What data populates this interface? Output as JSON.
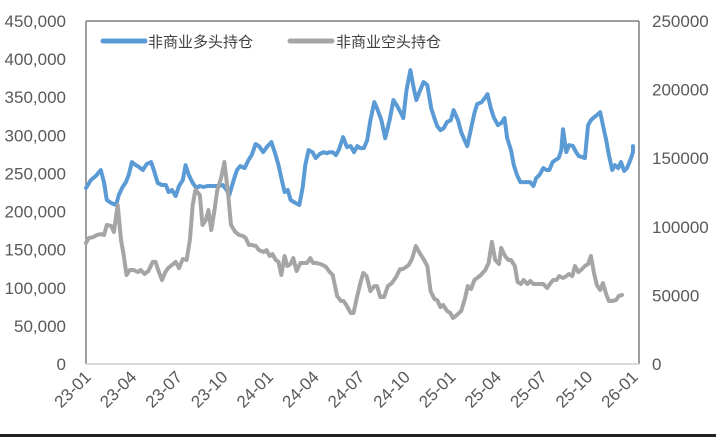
{
  "chart_data": {
    "type": "line",
    "title": "",
    "xlabel": "",
    "ylabel": "",
    "y2label": "",
    "x_tick_labels": [
      "23-01",
      "23-04",
      "23-07",
      "23-10",
      "24-01",
      "24-04",
      "24-07",
      "24-10",
      "25-01",
      "25-04",
      "25-07",
      "25-10",
      "26-01"
    ],
    "y_left": {
      "ticks": [
        0,
        50000,
        100000,
        150000,
        200000,
        250000,
        300000,
        350000,
        400000,
        450000
      ],
      "tick_labels": [
        "0",
        "50,000",
        "100,000",
        "150,000",
        "200,000",
        "250,000",
        "300,000",
        "350,000",
        "400,000",
        "450,000"
      ],
      "range": [
        0,
        450000
      ]
    },
    "y_right": {
      "ticks": [
        0,
        50000,
        100000,
        150000,
        200000,
        250000
      ],
      "tick_labels": [
        "0",
        "50000",
        "100000",
        "150000",
        "200000",
        "250000"
      ],
      "range": [
        0,
        250000
      ]
    },
    "legend_position": "top-left inside",
    "grid": false,
    "series": [
      {
        "name": "非商业多头持仓",
        "axis": "left",
        "color": "#5B9BD5",
        "x_frac": [
          0,
          0.009,
          0.018,
          0.027,
          0.033,
          0.038,
          0.046,
          0.055,
          0.06,
          0.066,
          0.073,
          0.078,
          0.084,
          0.091,
          0.097,
          0.104,
          0.111,
          0.119,
          0.124,
          0.131,
          0.139,
          0.146,
          0.151,
          0.157,
          0.164,
          0.17,
          0.177,
          0.182,
          0.188,
          0.195,
          0.202,
          0.208,
          0.215,
          0.222,
          0.23,
          0.237,
          0.242,
          0.25,
          0.257,
          0.262,
          0.27,
          0.276,
          0.282,
          0.29,
          0.297,
          0.303,
          0.31,
          0.316,
          0.324,
          0.332,
          0.339,
          0.345,
          0.352,
          0.358,
          0.363,
          0.369,
          0.374,
          0.383,
          0.39,
          0.396,
          0.401,
          0.407,
          0.414,
          0.42,
          0.427,
          0.434,
          0.44,
          0.445,
          0.451,
          0.457,
          0.462,
          0.47,
          0.477,
          0.484,
          0.49,
          0.496,
          0.501,
          0.508,
          0.514,
          0.52,
          0.527,
          0.532,
          0.54,
          0.547,
          0.555,
          0.562,
          0.569,
          0.575,
          0.58,
          0.586,
          0.593,
          0.599,
          0.604,
          0.611,
          0.617,
          0.624,
          0.631,
          0.637,
          0.642,
          0.648,
          0.654,
          0.66,
          0.667,
          0.672,
          0.68,
          0.686,
          0.692,
          0.697,
          0.704,
          0.71,
          0.715,
          0.723,
          0.729,
          0.734,
          0.74,
          0.746,
          0.753,
          0.759,
          0.765,
          0.77,
          0.777,
          0.782,
          0.788,
          0.794,
          0.801,
          0.807,
          0.812,
          0.818,
          0.823,
          0.829,
          0.836,
          0.842,
          0.847,
          0.853,
          0.858,
          0.864,
          0.869,
          0.872,
          0.878,
          0.883,
          0.89,
          0.896,
          0.901,
          0.907,
          0.912,
          0.918,
          0.923,
          0.929,
          0.934,
          0.94,
          0.945,
          0.951,
          0.956,
          0.962,
          0.967,
          0.973,
          0.978,
          0.984,
          0.989,
          0.995,
          1.0
        ],
        "values": [
          230900,
          241400,
          246600,
          254500,
          237500,
          215100,
          211200,
          208600,
          221700,
          230900,
          238700,
          247900,
          264900,
          261000,
          258300,
          254500,
          262300,
          264900,
          254500,
          237500,
          234800,
          234800,
          225700,
          228300,
          220400,
          233500,
          241400,
          261000,
          247900,
          237500,
          230900,
          233500,
          232200,
          233500,
          233500,
          233500,
          233500,
          234800,
          228300,
          221700,
          241400,
          254500,
          259600,
          257000,
          267500,
          274100,
          288500,
          285900,
          278000,
          285900,
          291100,
          278000,
          261000,
          241400,
          225700,
          228300,
          215100,
          211200,
          208600,
          230900,
          261000,
          280600,
          277900,
          270100,
          275400,
          277900,
          276600,
          277900,
          277900,
          274100,
          280600,
          297700,
          284600,
          285900,
          278000,
          285900,
          283200,
          283200,
          293700,
          319900,
          343500,
          335600,
          319900,
          296300,
          319900,
          346200,
          338300,
          330400,
          322600,
          359300,
          385500,
          361900,
          346200,
          359300,
          369800,
          365900,
          335600,
          322600,
          312100,
          306800,
          309400,
          317300,
          319900,
          333000,
          319900,
          304100,
          293700,
          285900,
          309400,
          329100,
          340900,
          343500,
          348800,
          354000,
          335600,
          322600,
          313400,
          316000,
          322600,
          296300,
          280600,
          261000,
          248100,
          238700,
          238700,
          238700,
          238700,
          233500,
          244000,
          248100,
          257000,
          254500,
          254500,
          264900,
          267500,
          270100,
          280600,
          308100,
          278000,
          287200,
          286000,
          278000,
          272800,
          271500,
          270100,
          313400,
          320000,
          323900,
          326500,
          330400,
          313400,
          293700,
          274100,
          254500,
          261000,
          257000,
          264900,
          253200,
          257000,
          267500,
          278000,
          285900
        ]
      },
      {
        "name": "非商业空头持仓",
        "axis": "right",
        "color": "#A5A5A5",
        "x_frac": [
          0,
          0.005,
          0.013,
          0.02,
          0.027,
          0.033,
          0.038,
          0.046,
          0.051,
          0.058,
          0.064,
          0.069,
          0.074,
          0.08,
          0.087,
          0.095,
          0.1,
          0.107,
          0.114,
          0.122,
          0.127,
          0.132,
          0.139,
          0.145,
          0.15,
          0.157,
          0.164,
          0.17,
          0.177,
          0.184,
          0.19,
          0.195,
          0.2,
          0.208,
          0.213,
          0.219,
          0.224,
          0.229,
          0.235,
          0.24,
          0.247,
          0.253,
          0.26,
          0.265,
          0.273,
          0.28,
          0.287,
          0.292,
          0.298,
          0.303,
          0.311,
          0.316,
          0.325,
          0.33,
          0.336,
          0.341,
          0.347,
          0.352,
          0.357,
          0.363,
          0.368,
          0.374,
          0.379,
          0.385,
          0.392,
          0.397,
          0.404,
          0.41,
          0.415,
          0.421,
          0.428,
          0.433,
          0.439,
          0.444,
          0.451,
          0.459,
          0.466,
          0.471,
          0.477,
          0.484,
          0.489,
          0.495,
          0.502,
          0.507,
          0.513,
          0.52,
          0.527,
          0.532,
          0.538,
          0.545,
          0.552,
          0.559,
          0.567,
          0.574,
          0.579,
          0.585,
          0.59,
          0.596,
          0.603,
          0.61,
          0.617,
          0.624,
          0.63,
          0.637,
          0.642,
          0.648,
          0.653,
          0.66,
          0.666,
          0.671,
          0.678,
          0.686,
          0.693,
          0.698,
          0.704,
          0.71,
          0.715,
          0.722,
          0.73,
          0.736,
          0.742,
          0.748,
          0.755,
          0.759,
          0.766,
          0.772,
          0.777,
          0.784,
          0.789,
          0.795,
          0.8,
          0.807,
          0.812,
          0.818,
          0.824,
          0.829,
          0.836,
          0.843,
          0.848,
          0.854,
          0.86,
          0.865,
          0.872,
          0.878,
          0.883,
          0.889,
          0.894,
          0.9,
          0.905,
          0.912,
          0.918,
          0.923,
          0.929,
          0.934,
          0.94,
          0.945,
          0.951,
          0.956,
          0.962,
          0.969,
          0.974,
          0.98,
          0.987,
          0.995,
          1.0
        ],
        "values": [
          88200,
          91800,
          92500,
          94000,
          94700,
          94000,
          101300,
          100600,
          96200,
          115900,
          90400,
          79500,
          64900,
          68500,
          68500,
          67000,
          68500,
          65600,
          67800,
          74400,
          74400,
          68500,
          61200,
          67000,
          69900,
          72100,
          74400,
          69900,
          76500,
          75800,
          90400,
          115900,
          126800,
          123200,
          101300,
          104900,
          112200,
          97600,
          112200,
          126800,
          135600,
          147200,
          123200,
          101300,
          96200,
          94000,
          93300,
          91800,
          86700,
          86700,
          85900,
          83000,
          81600,
          83000,
          78700,
          80100,
          75800,
          74400,
          64900,
          78700,
          71400,
          72900,
          77200,
          67800,
          73600,
          73600,
          73600,
          77200,
          73600,
          73600,
          72900,
          72100,
          70700,
          67800,
          64900,
          49600,
          45900,
          45900,
          42300,
          37200,
          37200,
          48100,
          59800,
          66300,
          64100,
          53100,
          56800,
          56800,
          48800,
          48800,
          56800,
          59000,
          63400,
          69200,
          69200,
          70700,
          72100,
          76500,
          86000,
          80900,
          76500,
          71400,
          53100,
          47400,
          46600,
          41500,
          43000,
          38800,
          37200,
          33500,
          35700,
          38600,
          48100,
          56800,
          54700,
          61200,
          62700,
          64900,
          68500,
          73600,
          89000,
          75800,
          72900,
          84600,
          78700,
          75800,
          75800,
          71400,
          59800,
          58300,
          61200,
          58300,
          60500,
          58300,
          58300,
          58300,
          58300,
          55400,
          58300,
          61200,
          61200,
          64100,
          62700,
          64100,
          65600,
          64100,
          71400,
          67000,
          68500,
          71400,
          72900,
          78700,
          65600,
          57500,
          53900,
          59000,
          50900,
          45900,
          45900,
          46600,
          49600,
          50400
        ]
      }
    ]
  },
  "legend": {
    "items": [
      {
        "label": "非商业多头持仓",
        "color": "#5B9BD5"
      },
      {
        "label": "非商业空头持仓",
        "color": "#A5A5A5"
      }
    ]
  }
}
